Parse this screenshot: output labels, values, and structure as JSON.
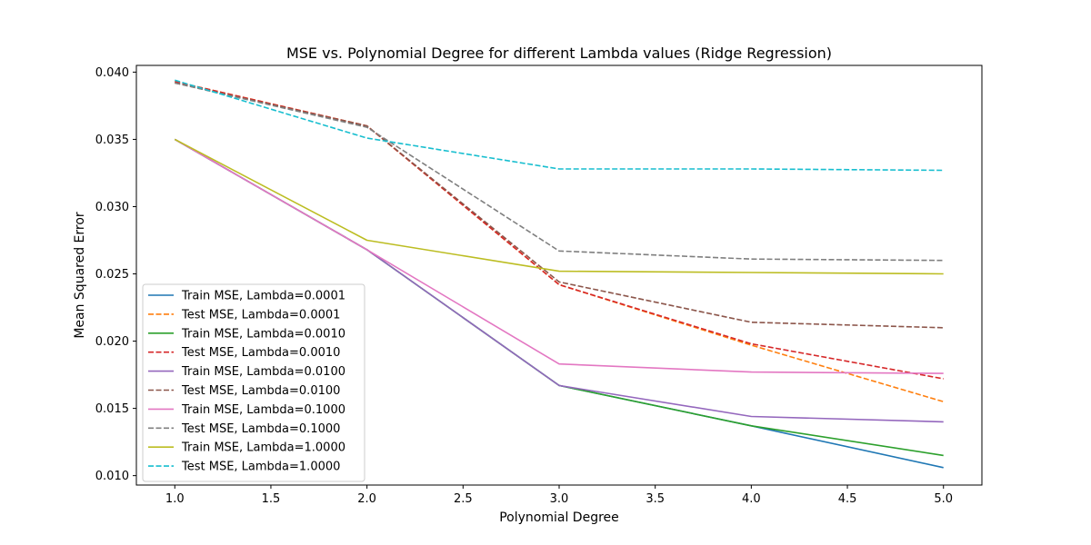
{
  "chart_data": {
    "type": "line",
    "title": "MSE vs. Polynomial Degree for different Lambda values (Ridge Regression)",
    "xlabel": "Polynomial Degree",
    "ylabel": "Mean Squared Error",
    "xlim": [
      0.8,
      5.2
    ],
    "ylim": [
      0.0093,
      0.0405
    ],
    "xticks": [
      1.0,
      1.5,
      2.0,
      2.5,
      3.0,
      3.5,
      4.0,
      4.5,
      5.0
    ],
    "xtick_labels": [
      "1.0",
      "1.5",
      "2.0",
      "2.5",
      "3.0",
      "3.5",
      "4.0",
      "4.5",
      "5.0"
    ],
    "yticks": [
      0.01,
      0.015,
      0.02,
      0.025,
      0.03,
      0.035,
      0.04
    ],
    "ytick_labels": [
      "0.010",
      "0.015",
      "0.020",
      "0.025",
      "0.030",
      "0.035",
      "0.040"
    ],
    "grid": false,
    "legend_position": "lower-left",
    "x": [
      1,
      2,
      3,
      4,
      5
    ],
    "series": [
      {
        "name": "Train MSE, Lambda=0.0001",
        "color": "#1f77b4",
        "style": "solid",
        "values": [
          0.035,
          0.0268,
          0.0167,
          0.0137,
          0.0106
        ]
      },
      {
        "name": "Test MSE, Lambda=0.0001",
        "color": "#ff7f0e",
        "style": "dashed",
        "values": [
          0.0393,
          0.036,
          0.0242,
          0.0197,
          0.0155
        ]
      },
      {
        "name": "Train MSE, Lambda=0.0010",
        "color": "#2ca02c",
        "style": "solid",
        "values": [
          0.035,
          0.0268,
          0.0167,
          0.0137,
          0.0115
        ]
      },
      {
        "name": "Test MSE, Lambda=0.0010",
        "color": "#d62728",
        "style": "dashed",
        "values": [
          0.0393,
          0.036,
          0.0242,
          0.0198,
          0.0172
        ]
      },
      {
        "name": "Train MSE, Lambda=0.0100",
        "color": "#9467bd",
        "style": "solid",
        "values": [
          0.035,
          0.0268,
          0.0167,
          0.0144,
          0.014
        ]
      },
      {
        "name": "Test MSE, Lambda=0.0100",
        "color": "#8c564b",
        "style": "dashed",
        "values": [
          0.0392,
          0.036,
          0.0244,
          0.0214,
          0.021
        ]
      },
      {
        "name": "Train MSE, Lambda=0.1000",
        "color": "#e377c2",
        "style": "solid",
        "values": [
          0.035,
          0.0268,
          0.0183,
          0.0177,
          0.0176
        ]
      },
      {
        "name": "Test MSE, Lambda=0.1000",
        "color": "#7f7f7f",
        "style": "dashed",
        "values": [
          0.0392,
          0.0359,
          0.0267,
          0.0261,
          0.026
        ]
      },
      {
        "name": "Train MSE, Lambda=1.0000",
        "color": "#bcbd22",
        "style": "solid",
        "values": [
          0.035,
          0.0275,
          0.0252,
          0.0251,
          0.025
        ]
      },
      {
        "name": "Test MSE, Lambda=1.0000",
        "color": "#17becf",
        "style": "dashed",
        "values": [
          0.0394,
          0.0351,
          0.0328,
          0.0328,
          0.0327
        ]
      }
    ]
  }
}
